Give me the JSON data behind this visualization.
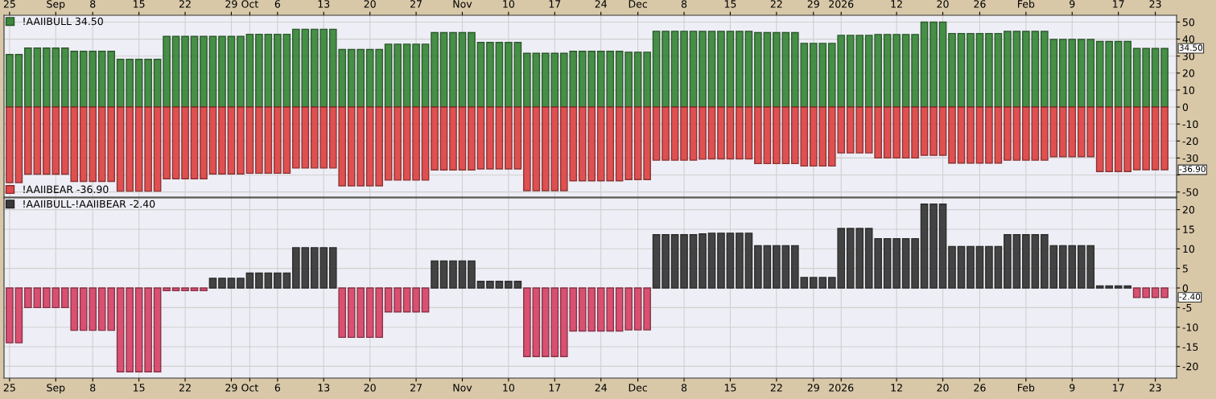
{
  "chart_data": [
    {
      "type": "bar",
      "categories": [
        "25",
        null,
        null,
        null,
        null,
        "Sep",
        null,
        null,
        null,
        "8",
        null,
        null,
        null,
        null,
        "15",
        null,
        null,
        null,
        null,
        "22",
        null,
        null,
        null,
        null,
        "29",
        null,
        "Oct",
        null,
        null,
        "6",
        null,
        null,
        null,
        null,
        "13",
        null,
        null,
        null,
        null,
        "20",
        null,
        null,
        null,
        null,
        "27",
        null,
        null,
        null,
        null,
        "Nov",
        null,
        null,
        null,
        null,
        "10",
        null,
        null,
        null,
        null,
        "17",
        null,
        null,
        null,
        null,
        "24",
        null,
        null,
        null,
        "Dec",
        null,
        null,
        null,
        null,
        "8",
        null,
        null,
        null,
        null,
        "15",
        null,
        null,
        null,
        null,
        "22",
        null,
        null,
        null,
        "29",
        null,
        null,
        "2026",
        null,
        null,
        null,
        null,
        null,
        "12",
        null,
        null,
        null,
        null,
        "20",
        null,
        null,
        null,
        "26",
        null,
        null,
        null,
        null,
        "Feb",
        null,
        null,
        null,
        null,
        "9",
        null,
        null,
        null,
        null,
        "17",
        null,
        null,
        null,
        "23",
        null
      ],
      "series": [
        {
          "name": "!AAIIBULL 34.50",
          "color": "#3d8a3d",
          "values": [
            30.9,
            30.9,
            34.7,
            34.7,
            34.7,
            34.7,
            34.7,
            32.8,
            32.8,
            32.8,
            32.8,
            32.8,
            28.1,
            28.1,
            28.1,
            28.1,
            28.1,
            41.6,
            41.6,
            41.6,
            41.6,
            41.6,
            41.6,
            41.6,
            41.6,
            41.6,
            42.8,
            42.8,
            42.8,
            42.8,
            42.8,
            45.8,
            45.8,
            45.8,
            45.8,
            45.8,
            33.9,
            33.9,
            33.9,
            33.9,
            33.9,
            37.0,
            37.0,
            37.0,
            37.0,
            37.0,
            43.8,
            43.8,
            43.8,
            43.8,
            43.8,
            38.0,
            38.0,
            38.0,
            38.0,
            38.0,
            31.6,
            31.6,
            31.6,
            31.6,
            31.6,
            32.8,
            32.8,
            32.8,
            32.8,
            32.8,
            32.8,
            32.3,
            32.3,
            32.3,
            44.6,
            44.6,
            44.6,
            44.6,
            44.6,
            44.5,
            44.5,
            44.5,
            44.5,
            44.5,
            44.5,
            43.8,
            43.8,
            43.8,
            43.8,
            43.8,
            37.5,
            37.5,
            37.5,
            37.5,
            42.2,
            42.2,
            42.2,
            42.2,
            42.7,
            42.7,
            42.7,
            42.7,
            42.7,
            50.0,
            50.0,
            50.0,
            43.3,
            43.3,
            43.3,
            43.3,
            43.3,
            43.3,
            44.5,
            44.5,
            44.5,
            44.5,
            44.5,
            39.8,
            39.8,
            39.8,
            39.8,
            39.8,
            38.6,
            38.6,
            38.6,
            38.6,
            34.5,
            34.5,
            34.5,
            34.5
          ]
        },
        {
          "name": "!AAIIBEAR -36.90",
          "color": "#e04848",
          "values": [
            -44.5,
            -44.5,
            -39.5,
            -39.5,
            -39.5,
            -39.5,
            -39.5,
            -43.8,
            -43.8,
            -43.8,
            -43.8,
            -43.8,
            -49.5,
            -49.5,
            -49.5,
            -49.5,
            -49.5,
            -42.2,
            -42.2,
            -42.2,
            -42.2,
            -42.2,
            -39.4,
            -39.4,
            -39.4,
            -39.4,
            -39.0,
            -39.0,
            -39.0,
            -39.0,
            -39.0,
            -35.9,
            -35.9,
            -35.9,
            -35.9,
            -35.9,
            -46.4,
            -46.4,
            -46.4,
            -46.4,
            -46.4,
            -43.0,
            -43.0,
            -43.0,
            -43.0,
            -43.0,
            -37.0,
            -37.0,
            -37.0,
            -37.0,
            -37.0,
            -36.4,
            -36.4,
            -36.4,
            -36.4,
            -36.4,
            -49.2,
            -49.2,
            -49.2,
            -49.2,
            -49.2,
            -43.4,
            -43.4,
            -43.4,
            -43.4,
            -43.4,
            -43.4,
            -42.7,
            -42.7,
            -42.7,
            -31.3,
            -31.3,
            -31.3,
            -31.3,
            -31.3,
            -30.7,
            -30.5,
            -30.5,
            -30.5,
            -30.5,
            -30.5,
            -33.3,
            -33.3,
            -33.3,
            -33.3,
            -33.3,
            -34.7,
            -34.7,
            -34.7,
            -34.7,
            -27.0,
            -27.0,
            -27.0,
            -27.0,
            -30.0,
            -30.0,
            -30.0,
            -30.0,
            -30.0,
            -28.4,
            -28.4,
            -28.4,
            -33.0,
            -33.0,
            -33.0,
            -33.0,
            -33.0,
            -33.0,
            -31.3,
            -31.3,
            -31.3,
            -31.3,
            -31.3,
            -29.2,
            -29.2,
            -29.2,
            -29.2,
            -29.2,
            -38.0,
            -38.0,
            -38.0,
            -38.0,
            -36.9,
            -36.9,
            -36.9,
            -36.9
          ]
        }
      ],
      "ylim": [
        -53,
        54
      ],
      "yticks": [
        -50,
        {
          "value": -40,
          "label": null
        },
        -30,
        -20,
        -10,
        0,
        10,
        20,
        30,
        40,
        50
      ],
      "grid": true,
      "legend": "left",
      "annotations": [
        "34.50",
        "-36.90"
      ]
    },
    {
      "type": "bar",
      "categories": [
        "25",
        null,
        null,
        null,
        null,
        "Sep",
        null,
        null,
        null,
        "8",
        null,
        null,
        null,
        null,
        "15",
        null,
        null,
        null,
        null,
        "22",
        null,
        null,
        null,
        null,
        "29",
        null,
        "Oct",
        null,
        null,
        "6",
        null,
        null,
        null,
        null,
        "13",
        null,
        null,
        null,
        null,
        "20",
        null,
        null,
        null,
        null,
        "27",
        null,
        null,
        null,
        null,
        "Nov",
        null,
        null,
        null,
        null,
        "10",
        null,
        null,
        null,
        null,
        "17",
        null,
        null,
        null,
        null,
        "24",
        null,
        null,
        null,
        "Dec",
        null,
        null,
        null,
        null,
        "8",
        null,
        null,
        null,
        null,
        "15",
        null,
        null,
        null,
        null,
        "22",
        null,
        null,
        null,
        "29",
        null,
        null,
        "2026",
        null,
        null,
        null,
        null,
        null,
        "12",
        null,
        null,
        null,
        null,
        "20",
        null,
        null,
        null,
        "26",
        null,
        null,
        null,
        null,
        "Feb",
        null,
        null,
        null,
        null,
        "9",
        null,
        null,
        null,
        null,
        "17",
        null,
        null,
        null,
        "23",
        null
      ],
      "series": [
        {
          "name": "!AAIIBULL-!AAIIBEAR -2.40",
          "color": "#3a3a3a",
          "values": [
            -14.0,
            -14.0,
            -5.0,
            -5.0,
            -5.0,
            -5.0,
            -5.0,
            -10.8,
            -10.8,
            -10.8,
            -10.8,
            -10.8,
            -21.4,
            -21.4,
            -21.4,
            -21.4,
            -21.4,
            -0.7,
            -0.7,
            -0.7,
            -0.7,
            -0.7,
            2.5,
            2.5,
            2.5,
            2.5,
            3.8,
            3.8,
            3.8,
            3.8,
            3.8,
            10.3,
            10.3,
            10.3,
            10.3,
            10.3,
            -12.6,
            -12.6,
            -12.6,
            -12.6,
            -12.6,
            -6.1,
            -6.1,
            -6.1,
            -6.1,
            -6.1,
            6.9,
            6.9,
            6.9,
            6.9,
            6.9,
            1.7,
            1.7,
            1.7,
            1.7,
            1.7,
            -17.5,
            -17.5,
            -17.5,
            -17.5,
            -17.5,
            -11.0,
            -11.0,
            -11.0,
            -11.0,
            -11.0,
            -11.0,
            -10.7,
            -10.7,
            -10.7,
            13.6,
            13.6,
            13.6,
            13.6,
            13.6,
            13.8,
            14.0,
            14.0,
            14.0,
            14.0,
            14.0,
            10.8,
            10.8,
            10.8,
            10.8,
            10.8,
            2.7,
            2.7,
            2.7,
            2.7,
            15.2,
            15.2,
            15.2,
            15.2,
            12.6,
            12.6,
            12.6,
            12.6,
            12.6,
            21.4,
            21.4,
            21.4,
            10.6,
            10.6,
            10.6,
            10.6,
            10.6,
            10.6,
            13.6,
            13.6,
            13.6,
            13.6,
            13.6,
            10.8,
            10.8,
            10.8,
            10.8,
            10.8,
            0.5,
            0.5,
            0.5,
            0.5,
            -2.4,
            -2.4,
            -2.4,
            -2.4
          ],
          "colors": [
            "#d9486a",
            "#d9486a",
            "#d9486a",
            "#d9486a",
            "#d9486a",
            "#d9486a",
            "#d9486a",
            "#d9486a",
            "#d9486a",
            "#d9486a",
            "#d9486a",
            "#d9486a",
            "#d9486a",
            "#d9486a",
            "#d9486a",
            "#d9486a",
            "#d9486a",
            "#d9486a",
            "#d9486a",
            "#d9486a",
            "#d9486a",
            "#d9486a",
            "#3a3a3a",
            "#3a3a3a",
            "#3a3a3a",
            "#3a3a3a",
            "#3a3a3a",
            "#3a3a3a",
            "#3a3a3a",
            "#3a3a3a",
            "#3a3a3a",
            "#3a3a3a",
            "#3a3a3a",
            "#3a3a3a",
            "#3a3a3a",
            "#3a3a3a",
            "#d9486a",
            "#d9486a",
            "#d9486a",
            "#d9486a",
            "#d9486a",
            "#d9486a",
            "#d9486a",
            "#d9486a",
            "#d9486a",
            "#d9486a",
            "#3a3a3a",
            "#3a3a3a",
            "#3a3a3a",
            "#3a3a3a",
            "#3a3a3a",
            "#3a3a3a",
            "#3a3a3a",
            "#3a3a3a",
            "#3a3a3a",
            "#3a3a3a",
            "#d9486a",
            "#d9486a",
            "#d9486a",
            "#d9486a",
            "#d9486a",
            "#d9486a",
            "#d9486a",
            "#d9486a",
            "#d9486a",
            "#d9486a",
            "#d9486a",
            "#d9486a",
            "#d9486a",
            "#d9486a",
            "#3a3a3a",
            "#3a3a3a",
            "#3a3a3a",
            "#3a3a3a",
            "#3a3a3a",
            "#3a3a3a",
            "#3a3a3a",
            "#3a3a3a",
            "#3a3a3a",
            "#3a3a3a",
            "#3a3a3a",
            "#3a3a3a",
            "#3a3a3a",
            "#3a3a3a",
            "#3a3a3a",
            "#3a3a3a",
            "#3a3a3a",
            "#3a3a3a",
            "#3a3a3a",
            "#3a3a3a",
            "#3a3a3a",
            "#3a3a3a",
            "#3a3a3a",
            "#3a3a3a",
            "#3a3a3a",
            "#3a3a3a",
            "#3a3a3a",
            "#3a3a3a",
            "#3a3a3a",
            "#3a3a3a",
            "#3a3a3a",
            "#3a3a3a",
            "#3a3a3a",
            "#3a3a3a",
            "#3a3a3a",
            "#3a3a3a",
            "#3a3a3a",
            "#3a3a3a",
            "#3a3a3a",
            "#3a3a3a",
            "#3a3a3a",
            "#3a3a3a",
            "#3a3a3a",
            "#3a3a3a",
            "#3a3a3a",
            "#3a3a3a",
            "#3a3a3a",
            "#3a3a3a",
            "#3a3a3a",
            "#3a3a3a",
            "#3a3a3a",
            "#3a3a3a",
            "#d9486a",
            "#d9486a",
            "#d9486a",
            "#d9486a"
          ]
        }
      ],
      "ylim": [
        -23,
        23
      ],
      "yticks": [
        -20,
        -15,
        -10,
        -5,
        0,
        5,
        10,
        15,
        20
      ],
      "grid": true,
      "legend": "top left",
      "annotations": [
        "-2.40"
      ]
    }
  ]
}
